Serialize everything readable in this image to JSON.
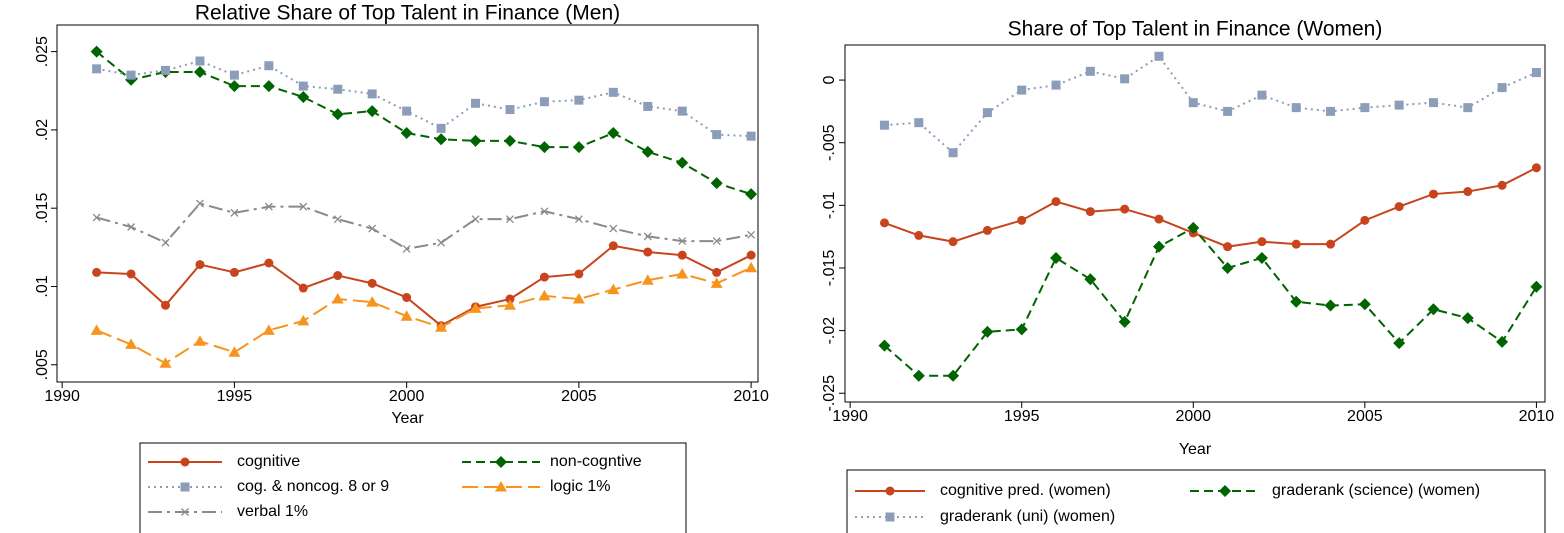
{
  "chart_data": [
    {
      "type": "line",
      "title": "Relative Share of Top Talent in Finance (Men)",
      "xlabel": "Year",
      "x": [
        1991,
        1992,
        1993,
        1994,
        1995,
        1996,
        1997,
        1998,
        1999,
        2000,
        2001,
        2002,
        2003,
        2004,
        2005,
        2006,
        2007,
        2008,
        2009,
        2010
      ],
      "xlim": [
        1989.85,
        2010.2
      ],
      "xticks": [
        1990,
        1995,
        2000,
        2005,
        2010
      ],
      "ylim": [
        0.0039,
        0.0267
      ],
      "yticks": [
        {
          "value": 0.005,
          "label": ".005"
        },
        {
          "value": 0.01,
          "label": ".01"
        },
        {
          "value": 0.015,
          "label": ".015"
        },
        {
          "value": 0.02,
          "label": ".02"
        },
        {
          "value": 0.025,
          "label": ".025"
        }
      ],
      "legend": "bottom",
      "series": [
        {
          "name": "cognitive",
          "color": "#c8441c",
          "marker": "circle",
          "dash": "solid",
          "values": [
            0.0109,
            0.0108,
            0.0088,
            0.0114,
            0.0109,
            0.0115,
            0.0099,
            0.0107,
            0.0102,
            0.0093,
            0.0075,
            0.0087,
            0.0092,
            0.0106,
            0.0108,
            0.0126,
            0.0122,
            0.012,
            0.0109,
            0.012
          ]
        },
        {
          "name": "non-cogntive",
          "color": "#006400",
          "marker": "diamond",
          "dash": "dash",
          "values": [
            0.025,
            0.0232,
            0.0237,
            0.0237,
            0.0228,
            0.0228,
            0.0221,
            0.021,
            0.0212,
            0.0198,
            0.0194,
            0.0193,
            0.0193,
            0.0189,
            0.0189,
            0.0198,
            0.0186,
            0.0179,
            0.0166,
            0.0159
          ]
        },
        {
          "name": "cog. & noncog. 8 or 9",
          "color": "#8c9dba",
          "marker": "square",
          "dash": "dot",
          "values": [
            0.0239,
            0.0235,
            0.0238,
            0.0244,
            0.0235,
            0.0241,
            0.0228,
            0.0226,
            0.0223,
            0.0212,
            0.0201,
            0.0217,
            0.0213,
            0.0218,
            0.0219,
            0.0224,
            0.0215,
            0.0212,
            0.0197,
            0.0196
          ]
        },
        {
          "name": "logic 1%",
          "color": "#f7941d",
          "marker": "triangle",
          "dash": "longdash",
          "values": [
            0.0072,
            0.0063,
            0.0051,
            0.0065,
            0.0058,
            0.0072,
            0.0078,
            0.0092,
            0.009,
            0.0081,
            0.0074,
            0.0086,
            0.0088,
            0.0094,
            0.0092,
            0.0098,
            0.0104,
            0.0108,
            0.0102,
            0.0112
          ]
        },
        {
          "name": "verbal 1%",
          "color": "#8a8a8a",
          "marker": "x",
          "dash": "dashdot",
          "values": [
            0.0144,
            0.0138,
            0.0128,
            0.0153,
            0.0147,
            0.0151,
            0.0151,
            0.0143,
            0.0137,
            0.0124,
            0.0128,
            0.0143,
            0.0143,
            0.0148,
            0.0143,
            0.0137,
            0.0132,
            0.0129,
            0.0129,
            0.0133
          ]
        }
      ]
    },
    {
      "type": "line",
      "title": "Share of Top Talent in Finance (Women)",
      "xlabel": "Year",
      "x": [
        1991,
        1992,
        1993,
        1994,
        1995,
        1996,
        1997,
        1998,
        1999,
        2000,
        2001,
        2002,
        2003,
        2004,
        2005,
        2006,
        2007,
        2008,
        2009,
        2010
      ],
      "xlim": [
        1989.85,
        2010.25
      ],
      "xticks": [
        1990,
        1995,
        2000,
        2005,
        2010
      ],
      "ylim": [
        -0.0257,
        0.0028
      ],
      "yticks": [
        {
          "value": -0.025,
          "label": "-.025"
        },
        {
          "value": -0.02,
          "label": "-.02"
        },
        {
          "value": -0.015,
          "label": "-.015"
        },
        {
          "value": -0.01,
          "label": "-.01"
        },
        {
          "value": -0.005,
          "label": "-.005"
        },
        0
      ],
      "legend": "bottom",
      "series": [
        {
          "name": "cognitive pred. (women)",
          "color": "#c8441c",
          "marker": "circle",
          "dash": "solid",
          "values": [
            -0.0114,
            -0.0124,
            -0.0129,
            -0.012,
            -0.0112,
            -0.0097,
            -0.0105,
            -0.0103,
            -0.0111,
            -0.0122,
            -0.0133,
            -0.0129,
            -0.0131,
            -0.0131,
            -0.0112,
            -0.0101,
            -0.0091,
            -0.0089,
            -0.0084,
            -0.007
          ]
        },
        {
          "name": "graderank (science) (women)",
          "color": "#006400",
          "marker": "diamond",
          "dash": "dash",
          "values": [
            -0.0212,
            -0.0236,
            -0.0236,
            -0.0201,
            -0.0199,
            -0.0142,
            -0.0159,
            -0.0193,
            -0.0133,
            -0.0118,
            -0.015,
            -0.0142,
            -0.0177,
            -0.018,
            -0.0179,
            -0.021,
            -0.0183,
            -0.019,
            -0.0209,
            -0.0165
          ]
        },
        {
          "name": "graderank (uni) (women)",
          "color": "#8c9dba",
          "marker": "square",
          "dash": "dot",
          "values": [
            -0.0036,
            -0.0034,
            -0.0058,
            -0.0026,
            -0.0008,
            -0.0004,
            0.0007,
            0.0001,
            0.0019,
            -0.0018,
            -0.0025,
            -0.0012,
            -0.0022,
            -0.0025,
            -0.0022,
            -0.002,
            -0.0018,
            -0.0022,
            -0.0006,
            0.0006
          ]
        }
      ]
    }
  ]
}
